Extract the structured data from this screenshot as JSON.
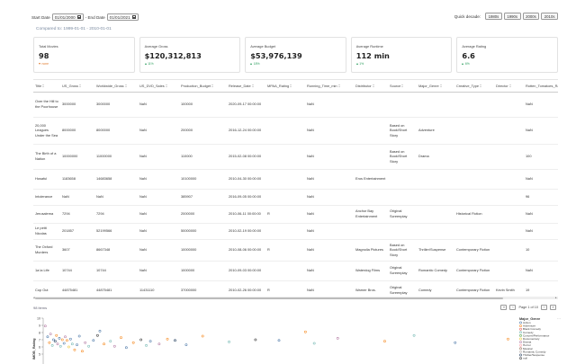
{
  "filters": {
    "start_label": "Start Date",
    "start_value": "01/01/2000",
    "end_label": "- End Date",
    "end_value": "01/01/2021",
    "quick_label": "Quick decade:",
    "quick_buttons": [
      "1980s",
      "1990s",
      "2000s",
      "2010s"
    ]
  },
  "compared_text": "Compared to: 1999-01-01 - 2010-01-01",
  "kpis": [
    {
      "title": "Total Movies",
      "value": "98",
      "delta": "none",
      "dir": "down"
    },
    {
      "title": "Average Gross",
      "value": "$120,312,813",
      "delta": "11%",
      "dir": "up"
    },
    {
      "title": "Average Budget",
      "value": "$53,976,139",
      "delta": "18%",
      "dir": "up"
    },
    {
      "title": "Average Runtime",
      "value": "112 min",
      "delta": "1%",
      "dir": "up"
    },
    {
      "title": "Average Rating",
      "value": "6.6",
      "delta": "6%",
      "dir": "up"
    }
  ],
  "table": {
    "columns": [
      "Title",
      "US_Gross",
      "Worldwide_Gross",
      "US_DVD_Sales",
      "Production_Budget",
      "Release_Date",
      "MPAA_Rating",
      "Running_Time_min",
      "Distributor",
      "Source",
      "Major_Genre",
      "Creative_Type",
      "Director",
      "Rotten_Tomatoes_Rating"
    ],
    "rows": [
      [
        "Over the Hill to the Poorhouse",
        "3000000",
        "3000000",
        "NaN",
        "100000",
        "2020-09-17 00:00:00",
        "",
        "NaN",
        "",
        "",
        "",
        "",
        "",
        "NaN"
      ],
      [
        "20,000 Leagues Under the Sea",
        "8000000",
        "8000000",
        "NaN",
        "200000",
        "2016-12-24 00:00:00",
        "",
        "NaN",
        "",
        "Based on Book/Short Story",
        "Adventure",
        "",
        "",
        "NaN"
      ],
      [
        "The Birth of a Nation",
        "10000000",
        "11000000",
        "NaN",
        "110000",
        "2015-02-08 00:00:00",
        "",
        "NaN",
        "",
        "Based on Book/Short Story",
        "Drama",
        "",
        "",
        "100"
      ],
      [
        "Hosaful",
        "1183658",
        "14683658",
        "NaN",
        "10100000",
        "2010-04-30 00:00:00",
        "",
        "NaN",
        "Eros Entertainment",
        "",
        "",
        "",
        "",
        "NaN"
      ],
      [
        "Intolerance",
        "NaN",
        "NaN",
        "NaN",
        "385907",
        "2016-09-05 00:00:00",
        "",
        "NaN",
        "",
        "",
        "",
        "",
        "",
        "96"
      ],
      [
        "Jerusalema",
        "7294",
        "7294",
        "NaN",
        "2000000",
        "2010-06-11 00:00:00",
        "R",
        "NaN",
        "Anchor Bay Entertainment",
        "Original Screenplay",
        "",
        "Historical Fiction",
        "",
        "NaN"
      ],
      [
        "Le petit Nicolas",
        "201857",
        "52199566",
        "NaN",
        "50000000",
        "2010-02-19 00:00:00",
        "",
        "NaN",
        "",
        "",
        "",
        "",
        "",
        "NaN"
      ],
      [
        "The Oxford Murders",
        "3607",
        "8667348",
        "NaN",
        "10000000",
        "2010-08-06 00:00:00",
        "R",
        "NaN",
        "Magnolia Pictures",
        "Based on Book/Short Story",
        "Thriller/Suspense",
        "Contemporary Fiction",
        "",
        "10"
      ],
      [
        "1a la Life",
        "10744",
        "10744",
        "NaN",
        "1000000",
        "2010-09-03 00:00:00",
        "",
        "NaN",
        "Waterdog Films",
        "Original Screenplay",
        "Romantic Comedy",
        "Contemporary Fiction",
        "",
        "NaN"
      ],
      [
        "Cop Out",
        "44875481",
        "44875481",
        "11431110",
        "37000000",
        "2010-02-26 00:00:00",
        "R",
        "NaN",
        "Warner Bros.",
        "Original Screenplay",
        "Comedy",
        "Contemporary Fiction",
        "Kevin Smith",
        "19"
      ]
    ]
  },
  "footer": {
    "items_text": "98 items",
    "page_text": "Page 1 of 10"
  },
  "chart_data": {
    "type": "scatter",
    "title": "",
    "xlabel": "",
    "ylabel": "IMDB_Rating",
    "ylim": [
      0,
      10
    ],
    "yticks": [
      10,
      9,
      8,
      7,
      6,
      5
    ],
    "legend_title": "Major_Genre",
    "legend_position": "right",
    "legend": [
      {
        "name": "Action",
        "color": "#4c78a8"
      },
      {
        "name": "Adventure",
        "color": "#f58518"
      },
      {
        "name": "Black Comedy",
        "color": "#e45756"
      },
      {
        "name": "Comedy",
        "color": "#72b7b2"
      },
      {
        "name": "Concert/Performance",
        "color": "#54a24b"
      },
      {
        "name": "Documentary",
        "color": "#eeca3b"
      },
      {
        "name": "Drama",
        "color": "#b279a2"
      },
      {
        "name": "Horror",
        "color": "#ff9da6"
      },
      {
        "name": "Musical",
        "color": "#9d755d"
      },
      {
        "name": "Romantic Comedy",
        "color": "#bab0ac"
      },
      {
        "name": "Thriller/Suspense",
        "color": "#1f3b5c"
      },
      {
        "name": "null",
        "color": "#333333"
      }
    ],
    "points": [
      [
        0.2,
        8.9,
        6
      ],
      [
        0.6,
        7.4,
        0
      ],
      [
        0.9,
        6.6,
        1
      ],
      [
        1.1,
        7.8,
        6
      ],
      [
        1.4,
        6.2,
        3
      ],
      [
        1.6,
        7.0,
        0
      ],
      [
        1.9,
        6.8,
        10
      ],
      [
        2.1,
        7.6,
        1
      ],
      [
        2.3,
        6.4,
        6
      ],
      [
        2.6,
        7.2,
        0
      ],
      [
        2.8,
        6.1,
        3
      ],
      [
        3.1,
        7.0,
        1
      ],
      [
        3.4,
        6.5,
        0
      ],
      [
        3.6,
        7.4,
        6
      ],
      [
        3.9,
        6.9,
        1
      ],
      [
        4.2,
        6.0,
        5
      ],
      [
        4.5,
        7.1,
        0
      ],
      [
        4.8,
        6.4,
        3
      ],
      [
        5.2,
        5.6,
        1
      ],
      [
        5.6,
        6.3,
        0
      ],
      [
        6.0,
        7.5,
        0
      ],
      [
        6.5,
        5.4,
        1
      ],
      [
        7.0,
        6.6,
        6
      ],
      [
        7.6,
        6.1,
        3
      ],
      [
        8.4,
        6.9,
        0
      ],
      [
        9.1,
        7.6,
        11
      ],
      [
        9.5,
        8.2,
        0
      ],
      [
        10.2,
        6.4,
        1
      ],
      [
        11.3,
        6.8,
        3
      ],
      [
        12.0,
        6.1,
        6
      ],
      [
        13.1,
        7.3,
        1
      ],
      [
        14.0,
        5.9,
        0
      ],
      [
        15.2,
        6.6,
        1
      ],
      [
        16.5,
        7.0,
        11
      ],
      [
        17.4,
        6.2,
        3
      ],
      [
        18.1,
        6.8,
        0
      ],
      [
        19.6,
        6.4,
        6
      ],
      [
        21.0,
        7.1,
        1
      ],
      [
        22.3,
        6.9,
        10
      ],
      [
        24.2,
        6.3,
        0
      ],
      [
        27.0,
        7.5,
        1
      ],
      [
        31.5,
        6.7,
        3
      ],
      [
        36.0,
        7.0,
        11
      ],
      [
        40.0,
        6.9,
        0
      ],
      [
        44.5,
        8.1,
        1
      ],
      [
        46.0,
        6.5,
        3
      ],
      [
        50.0,
        7.2,
        6
      ],
      [
        58.0,
        6.8,
        1
      ],
      [
        63.0,
        7.6,
        3
      ],
      [
        70.0,
        6.6,
        0
      ],
      [
        79.0,
        7.1,
        1
      ]
    ]
  }
}
